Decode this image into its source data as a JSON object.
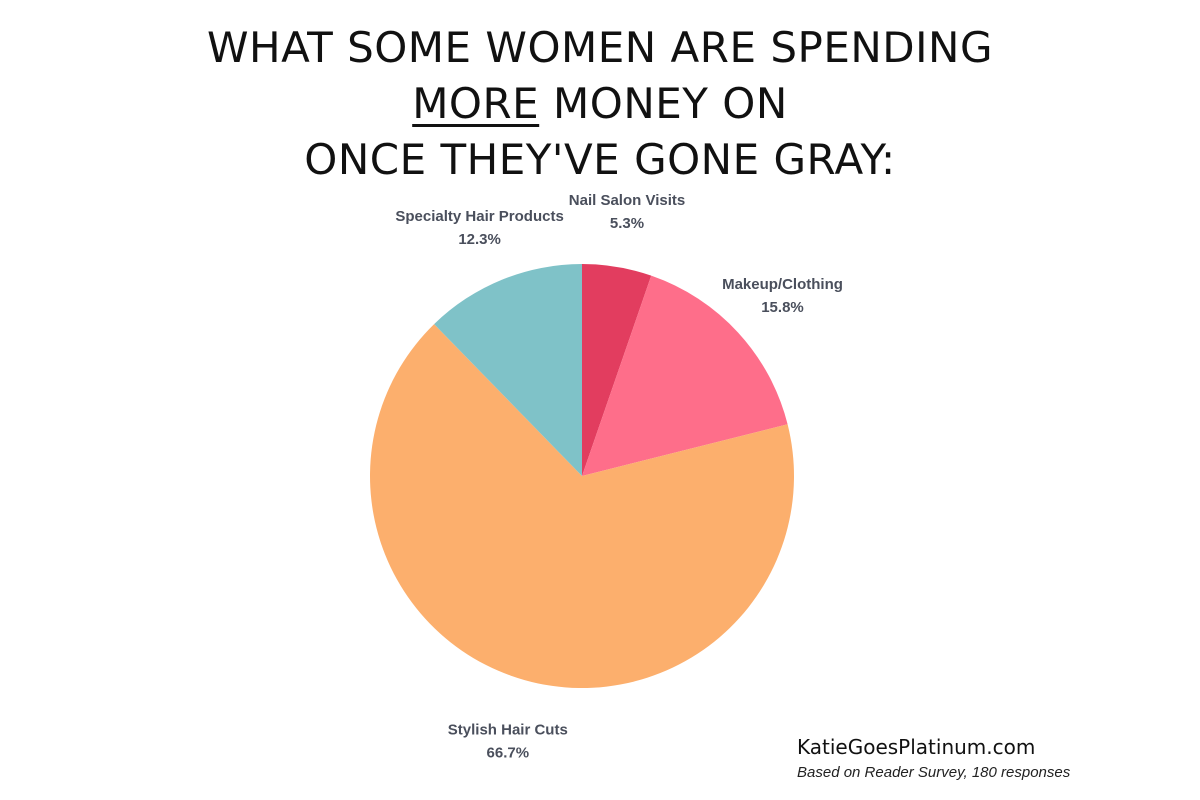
{
  "title": {
    "line1": "WHAT SOME WOMEN ARE SPENDING",
    "line2_underlined": "MORE",
    "line2_rest": " MONEY ON",
    "line3": "ONCE THEY'VE GONE GRAY:"
  },
  "footer": {
    "brand": "KatieGoesPlatinum.com",
    "source": "Based on Reader Survey, 180 responses"
  },
  "chart_data": {
    "type": "pie",
    "title": "WHAT SOME WOMEN ARE SPENDING MORE MONEY ON ONCE THEY'VE GONE GRAY:",
    "start_angle_deg": 0,
    "direction": "clockwise",
    "slices": [
      {
        "label": "Nail Salon Visits",
        "value": 5.3,
        "display": "5.3%",
        "color": "#e23d5f"
      },
      {
        "label": "Makeup/Clothing",
        "value": 15.8,
        "display": "15.8%",
        "color": "#fe6e8a"
      },
      {
        "label": "Stylish Hair Cuts",
        "value": 66.7,
        "display": "66.7%",
        "color": "#fcaf6d"
      },
      {
        "label": "Specialty Hair Products",
        "value": 12.3,
        "display": "12.3%",
        "color": "#7fc2c8"
      }
    ]
  }
}
